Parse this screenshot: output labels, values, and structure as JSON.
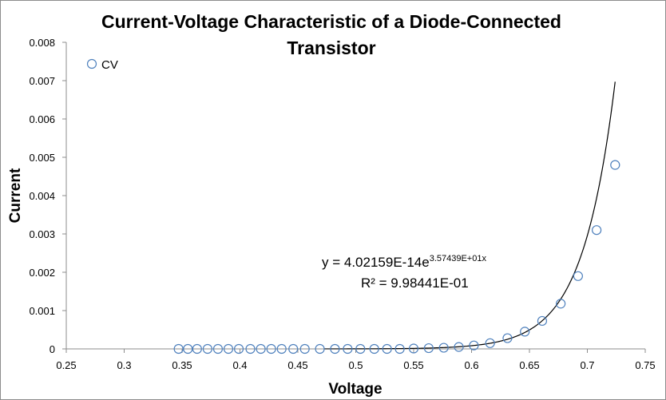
{
  "chart_data": {
    "type": "scatter",
    "title_line1": "Current-Voltage Characteristic of a Diode-Connected",
    "title_line2": "Transistor",
    "xlabel": "Voltage",
    "ylabel": "Current",
    "xlim": [
      0.25,
      0.75
    ],
    "ylim": [
      0,
      0.008
    ],
    "x_ticks": [
      "0.25",
      "0.3",
      "0.35",
      "0.4",
      "0.45",
      "0.5",
      "0.55",
      "0.6",
      "0.65",
      "0.7",
      "0.75"
    ],
    "y_ticks": [
      "0",
      "0.001",
      "0.002",
      "0.003",
      "0.004",
      "0.005",
      "0.006",
      "0.007",
      "0.008"
    ],
    "legend_position": "top-left",
    "grid": false,
    "series": [
      {
        "name": "CV",
        "marker": "open-circle",
        "color": "#4f81bd",
        "x": [
          0.347,
          0.355,
          0.363,
          0.372,
          0.381,
          0.39,
          0.399,
          0.409,
          0.418,
          0.427,
          0.436,
          0.446,
          0.456,
          0.469,
          0.482,
          0.493,
          0.504,
          0.516,
          0.527,
          0.538,
          0.55,
          0.563,
          0.576,
          0.589,
          0.602,
          0.616,
          0.631,
          0.646,
          0.661,
          0.677,
          0.692,
          0.708,
          0.724
        ],
        "y": [
          0,
          0,
          0,
          0,
          0,
          0,
          0,
          0,
          0,
          0,
          0,
          0,
          0,
          0,
          0,
          0,
          0,
          0,
          0,
          0,
          1e-05,
          2e-05,
          3e-05,
          5e-05,
          9e-05,
          0.00015,
          0.00028,
          0.00045,
          0.00073,
          0.00118,
          0.0019,
          0.0031,
          0.0048
        ]
      }
    ],
    "trendline": {
      "type": "exponential",
      "a": 4.02159e-14,
      "b": 35.7439,
      "x_range": [
        0.473,
        0.724
      ],
      "equation_main": "y = 4.02159E-14e",
      "equation_exponent": "3.57439E+01x",
      "r_squared": "R² = 9.98441E-01"
    }
  }
}
